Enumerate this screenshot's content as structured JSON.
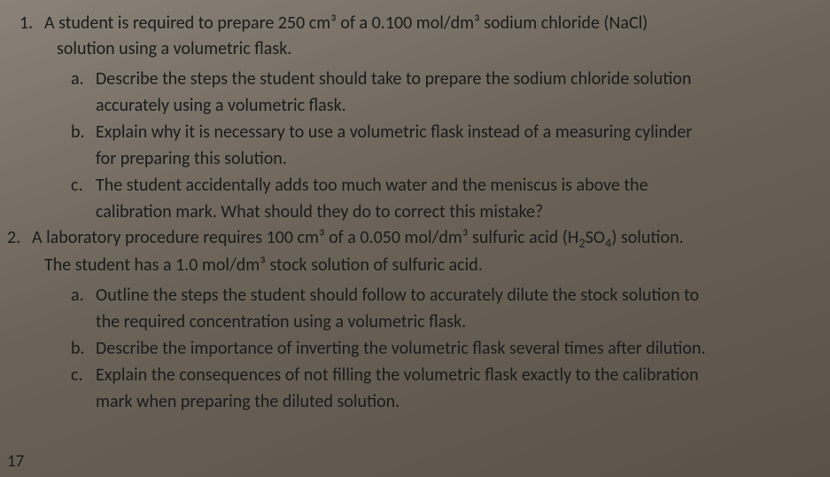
{
  "q1": {
    "number": "1.",
    "stem_line1": "A student is required to prepare 250 cm³ of a 0.100 mol/dm³ sodium chloride (NaCl)",
    "stem_line2": "solution using a volumetric flask.",
    "a": {
      "letter": "a.",
      "line1": "Describe the steps the student should take to prepare the sodium chloride solution",
      "line2": "accurately using a volumetric flask."
    },
    "b": {
      "letter": "b.",
      "line1": "Explain why it is necessary to use a volumetric flask instead of a measuring cylinder",
      "line2": "for preparing this solution."
    },
    "c": {
      "letter": "c.",
      "line1": "The student accidentally adds too much water and the meniscus is above the",
      "line2": "calibration mark. What should they do to correct this mistake?"
    }
  },
  "q2": {
    "number": "2.",
    "stem_line1_pre": "A laboratory procedure requires 100 cm³ of a 0.050 mol/dm³ sulfuric acid (H",
    "stem_line1_sub1": "2",
    "stem_line1_mid": "SO",
    "stem_line1_sub2": "4",
    "stem_line1_post": ") solution.",
    "stem_line2": "The student has a 1.0 mol/dm³ stock solution of sulfuric acid.",
    "a": {
      "letter": "a.",
      "line1": "Outline the steps the student should follow to accurately dilute the stock solution to",
      "line2": "the required concentration using a volumetric flask."
    },
    "b": {
      "letter": "b.",
      "line1": "Describe the importance of inverting the volumetric flask several times after dilution."
    },
    "c": {
      "letter": "c.",
      "line1": "Explain the consequences of not filling the volumetric flask exactly to the calibration",
      "line2": "mark when preparing the diluted solution."
    }
  },
  "page_number": "17",
  "style": {
    "font_family": "Calibri",
    "base_font_size_pt": 15,
    "text_color": "#1a1a1a",
    "bg_gradient_start": "#8a8278",
    "bg_gradient_end": "#5a5248"
  }
}
